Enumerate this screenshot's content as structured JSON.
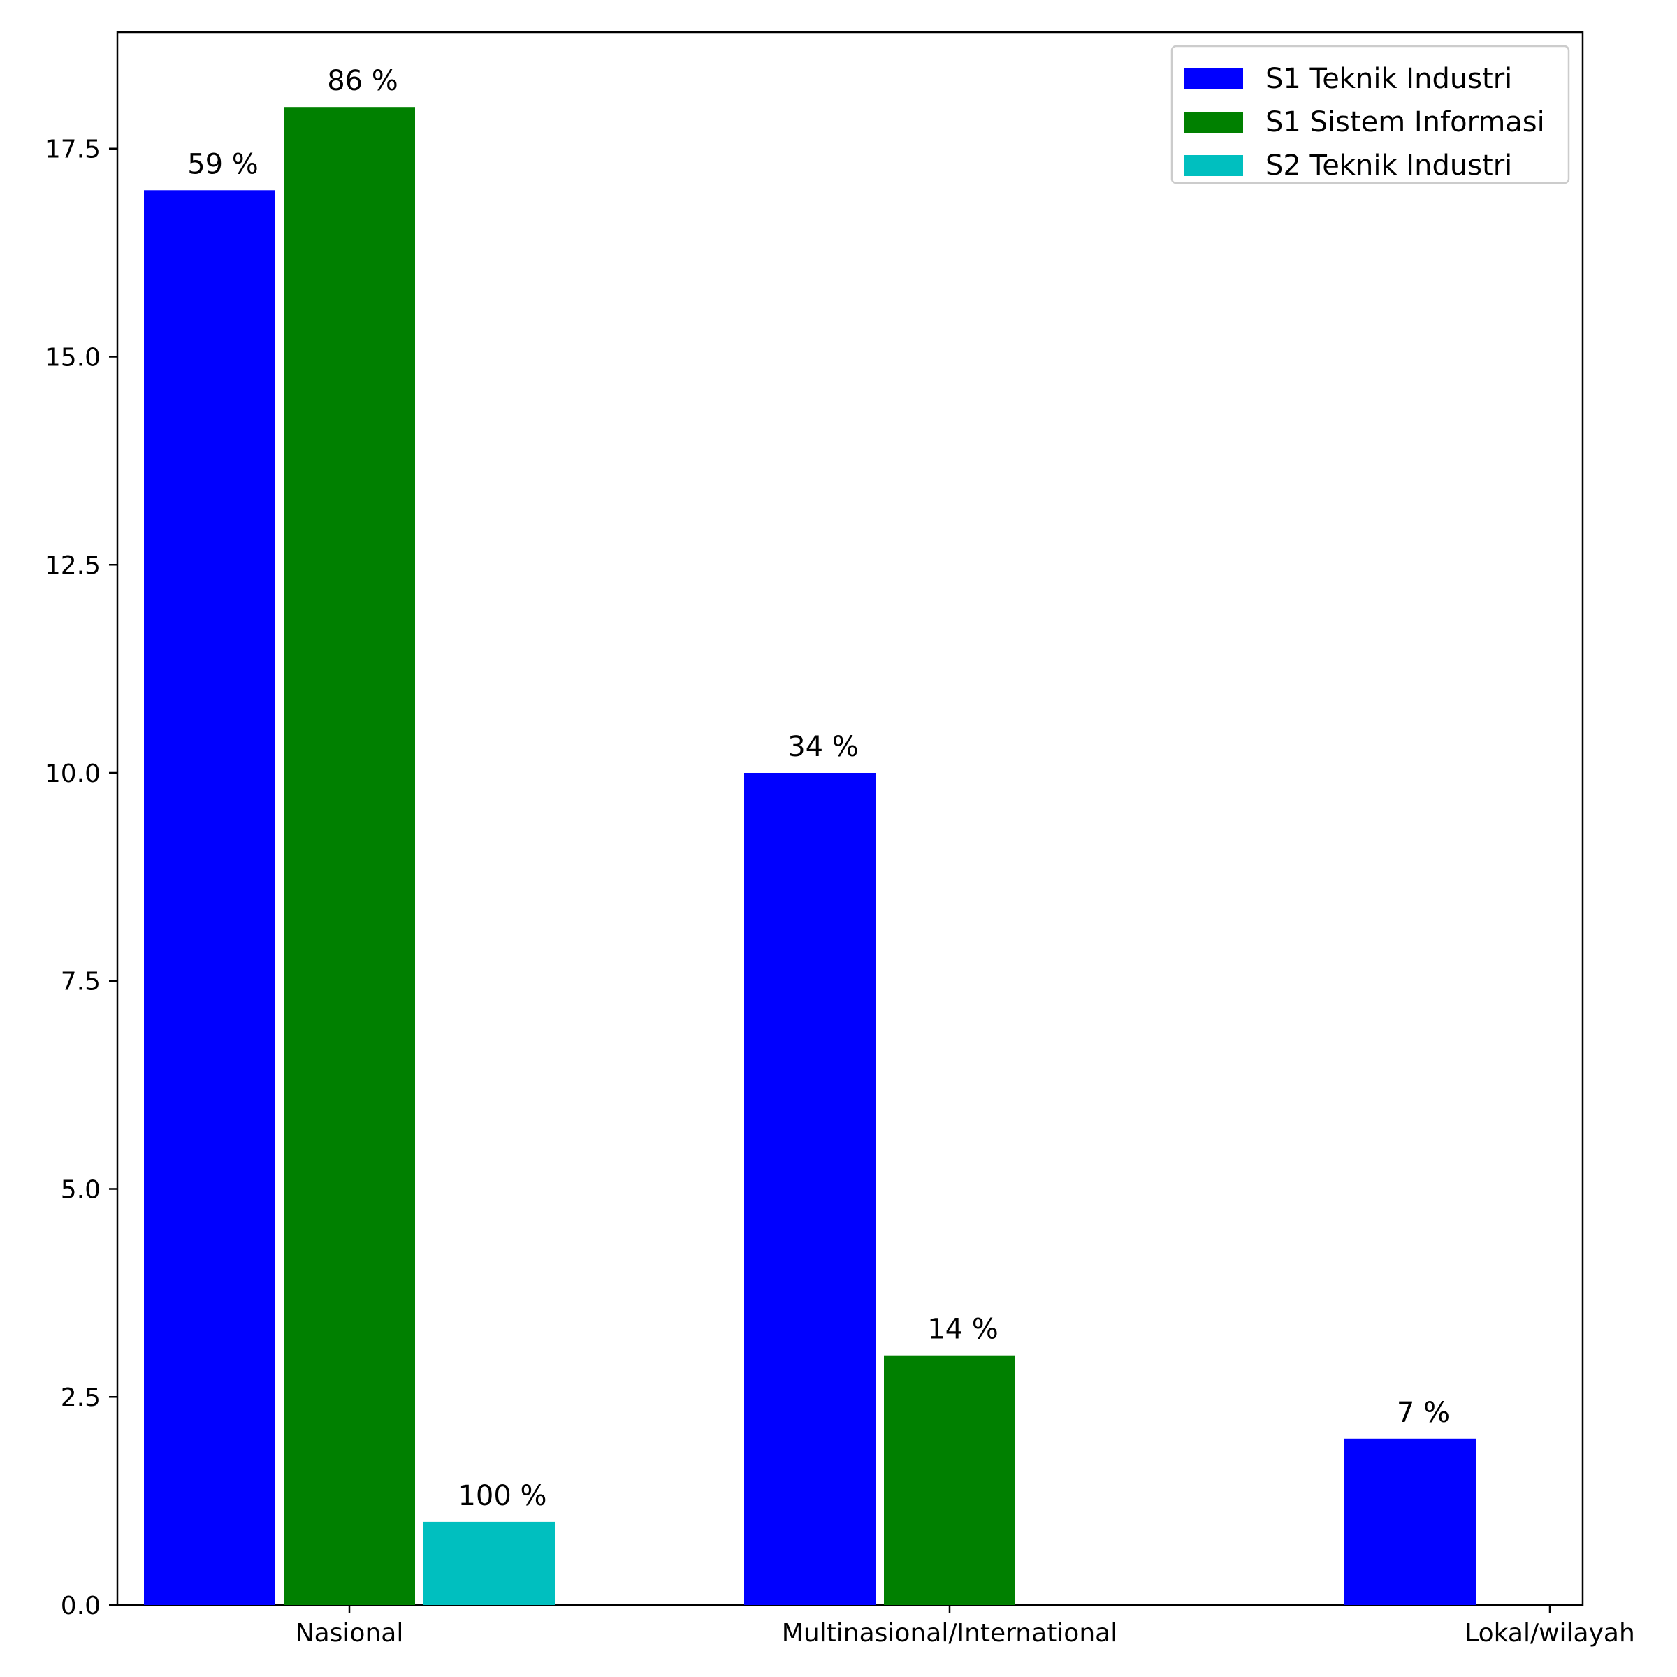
{
  "chart_data": {
    "type": "bar",
    "title": "",
    "xlabel": "",
    "ylabel": "",
    "categories": [
      "Nasional",
      "Multinasional/International",
      "Lokal/wilayah"
    ],
    "ylim": [
      0,
      18.9
    ],
    "yticks": [
      "0.0",
      "2.5",
      "5.0",
      "7.5",
      "10.0",
      "12.5",
      "15.0",
      "17.5"
    ],
    "legend_position": "top-right",
    "grid": false,
    "series": [
      {
        "name": "S1 Teknik Industri",
        "color": "#0000ff",
        "values": [
          17,
          10,
          2
        ],
        "labels": [
          "59 %",
          "34 %",
          "7 %"
        ]
      },
      {
        "name": "S1 Sistem Informasi",
        "color": "#008000",
        "values": [
          18,
          3,
          null
        ],
        "labels": [
          "86 %",
          "14 %",
          null
        ]
      },
      {
        "name": "S2 Teknik Industri",
        "color": "#00bfbf",
        "values": [
          1,
          null,
          null
        ],
        "labels": [
          "100 %",
          null,
          null
        ]
      }
    ]
  }
}
